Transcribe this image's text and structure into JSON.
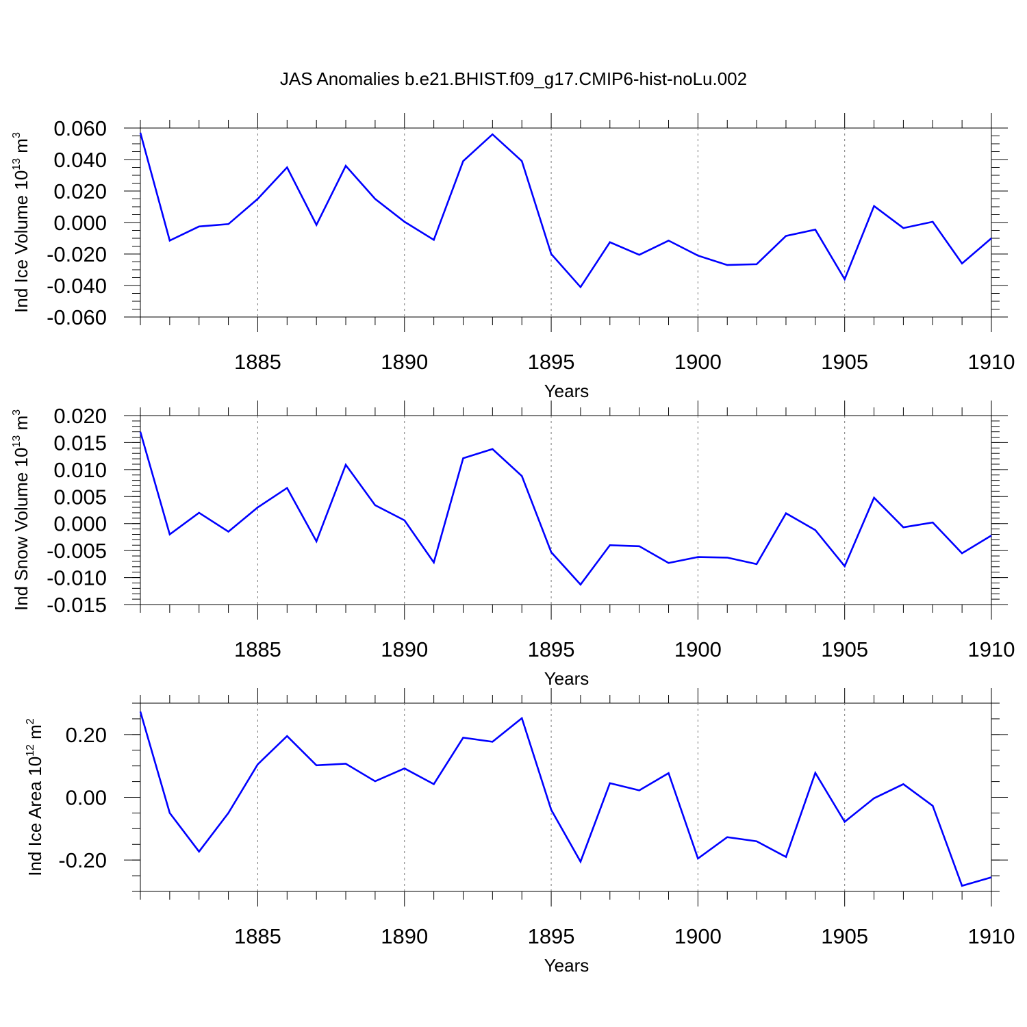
{
  "figure": {
    "title": "JAS Anomalies b.e21.BHIST.f09_g17.CMIP6-hist-noLu.002",
    "line_color": "#0000ff"
  },
  "chart_data": [
    {
      "type": "line",
      "title": "",
      "ylabel": {
        "text": "Ind Ice Volume 10",
        "sup": "13",
        "unit": " m",
        "unit_sup": "3"
      },
      "xlabel": "Years",
      "xlim": [
        1881,
        1910
      ],
      "ylim": [
        -0.06,
        0.06
      ],
      "x_ticks": [
        1885,
        1890,
        1895,
        1900,
        1905,
        1910
      ],
      "x_tick_labels": [
        "1885",
        "1890",
        "1895",
        "1900",
        "1905",
        "1910"
      ],
      "y_ticks": [
        0.06,
        0.04,
        0.02,
        0.0,
        -0.02,
        -0.04,
        -0.06
      ],
      "y_tick_labels": [
        "0.060",
        "0.040",
        "0.020",
        "0.000",
        "-0.020",
        "-0.040",
        "-0.060"
      ],
      "y_minor_step": 0.005,
      "series": [
        {
          "name": "Ind Ice Volume",
          "x": [
            1881,
            1882,
            1883,
            1884,
            1885,
            1886,
            1887,
            1888,
            1889,
            1890,
            1891,
            1892,
            1893,
            1894,
            1895,
            1896,
            1897,
            1898,
            1899,
            1900,
            1901,
            1902,
            1903,
            1904,
            1905,
            1906,
            1907,
            1908,
            1909,
            1910
          ],
          "values": [
            0.057,
            -0.0115,
            -0.0025,
            -0.001,
            0.015,
            0.035,
            -0.0015,
            0.036,
            0.015,
            0.0005,
            -0.011,
            0.039,
            0.056,
            0.039,
            -0.02,
            -0.041,
            -0.0125,
            -0.0205,
            -0.0115,
            -0.021,
            -0.027,
            -0.0265,
            -0.0085,
            -0.0045,
            -0.036,
            0.0105,
            -0.0035,
            0.0005,
            -0.026,
            -0.01
          ]
        }
      ]
    },
    {
      "type": "line",
      "title": "",
      "ylabel": {
        "text": "Ind Snow Volume 10",
        "sup": "13",
        "unit": " m",
        "unit_sup": "3"
      },
      "xlabel": "Years",
      "xlim": [
        1881,
        1910
      ],
      "ylim": [
        -0.015,
        0.02
      ],
      "x_ticks": [
        1885,
        1890,
        1895,
        1900,
        1905,
        1910
      ],
      "x_tick_labels": [
        "1885",
        "1890",
        "1895",
        "1900",
        "1905",
        "1910"
      ],
      "y_ticks": [
        0.02,
        0.015,
        0.01,
        0.005,
        0.0,
        -0.005,
        -0.01,
        -0.015
      ],
      "y_tick_labels": [
        "0.020",
        "0.015",
        "0.010",
        "0.005",
        "0.000",
        "-0.005",
        "-0.010",
        "-0.015"
      ],
      "y_minor_step": 0.001,
      "series": [
        {
          "name": "Ind Snow Volume",
          "x": [
            1881,
            1882,
            1883,
            1884,
            1885,
            1886,
            1887,
            1888,
            1889,
            1890,
            1891,
            1892,
            1893,
            1894,
            1895,
            1896,
            1897,
            1898,
            1899,
            1900,
            1901,
            1902,
            1903,
            1904,
            1905,
            1906,
            1907,
            1908,
            1909,
            1910
          ],
          "values": [
            0.017,
            -0.002,
            0.002,
            -0.0015,
            0.003,
            0.0066,
            -0.0033,
            0.0109,
            0.0034,
            0.0006,
            -0.0072,
            0.0121,
            0.0138,
            0.0088,
            -0.0053,
            -0.0113,
            -0.004,
            -0.0042,
            -0.0073,
            -0.0062,
            -0.0063,
            -0.0075,
            0.0019,
            -0.0012,
            -0.0079,
            0.0048,
            -0.0007,
            0.0002,
            -0.0055,
            -0.0022
          ]
        }
      ]
    },
    {
      "type": "line",
      "title": "",
      "ylabel": {
        "text": "Ind Ice Area 10",
        "sup": "12",
        "unit": " m",
        "unit_sup": "2"
      },
      "xlabel": "Years",
      "xlim": [
        1881,
        1910
      ],
      "ylim": [
        -0.3,
        0.3
      ],
      "x_ticks": [
        1885,
        1890,
        1895,
        1900,
        1905,
        1910
      ],
      "x_tick_labels": [
        "1885",
        "1890",
        "1895",
        "1900",
        "1905",
        "1910"
      ],
      "y_ticks": [
        0.2,
        0.0,
        -0.2
      ],
      "y_tick_labels": [
        "0.20",
        "0.00",
        "-0.20"
      ],
      "y_minor_step": 0.05,
      "series": [
        {
          "name": "Ind Ice Area",
          "x": [
            1881,
            1882,
            1883,
            1884,
            1885,
            1886,
            1887,
            1888,
            1889,
            1890,
            1891,
            1892,
            1893,
            1894,
            1895,
            1896,
            1897,
            1898,
            1899,
            1900,
            1901,
            1902,
            1903,
            1904,
            1905,
            1906,
            1907,
            1908,
            1909,
            1910
          ],
          "values": [
            0.273,
            -0.05,
            -0.173,
            -0.05,
            0.105,
            0.195,
            0.102,
            0.107,
            0.051,
            0.092,
            0.042,
            0.19,
            0.177,
            0.252,
            -0.04,
            -0.205,
            0.045,
            0.022,
            0.077,
            -0.195,
            -0.127,
            -0.14,
            -0.19,
            0.078,
            -0.078,
            -0.003,
            0.042,
            -0.027,
            -0.282,
            -0.255
          ]
        }
      ]
    }
  ]
}
